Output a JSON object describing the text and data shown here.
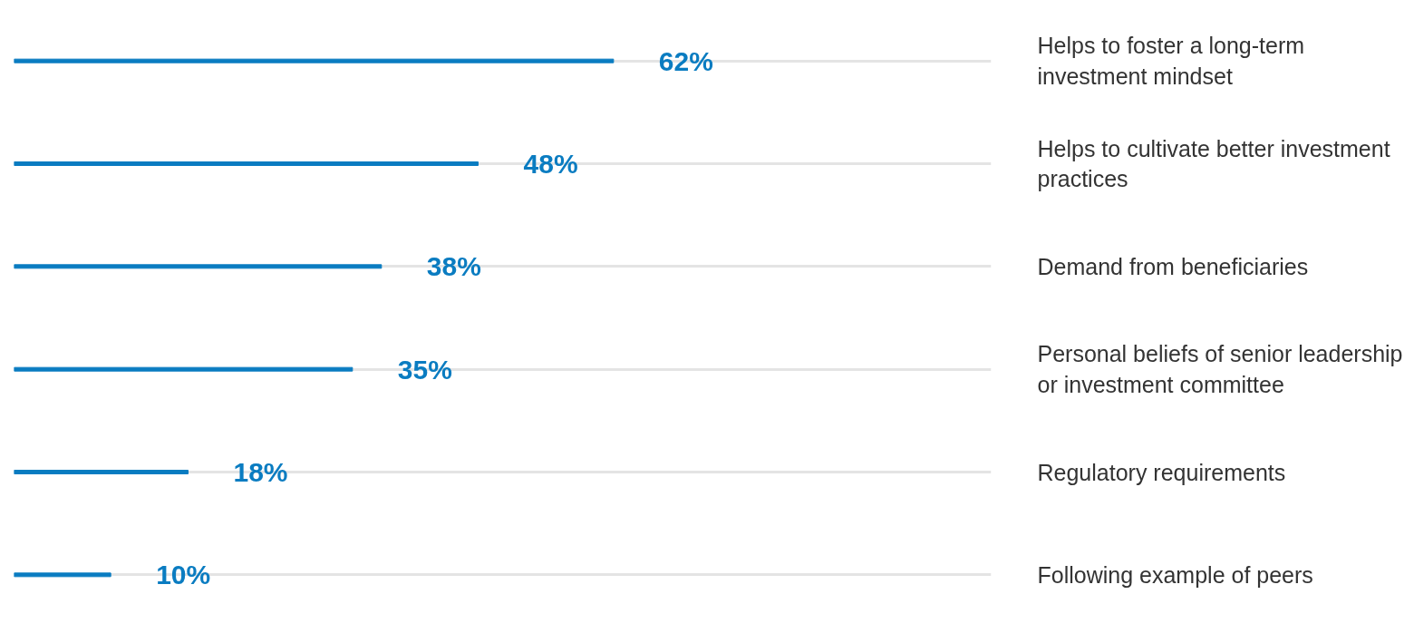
{
  "chart_data": {
    "type": "bar",
    "orientation": "horizontal",
    "categories": [
      "Helps to foster a long-term investment mindset",
      "Helps to cultivate better investment practices",
      "Demand from beneficiaries",
      "Personal beliefs of senior leadership or investment committee",
      "Regulatory requirements",
      "Following example of peers"
    ],
    "values": [
      62,
      48,
      38,
      35,
      18,
      10
    ],
    "value_labels": [
      "62%",
      "48%",
      "38%",
      "35%",
      "18%",
      "10%"
    ],
    "color": "#0a7cc1",
    "grid": "y",
    "tick_labels": "y"
  }
}
